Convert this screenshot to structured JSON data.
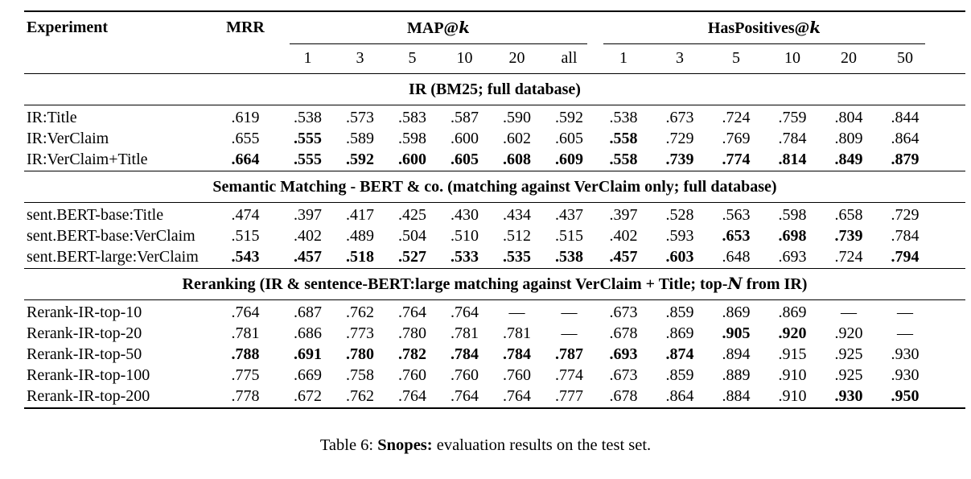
{
  "table": {
    "header": {
      "experiment": "Experiment",
      "mrr": "MRR",
      "groups": [
        {
          "name": "MAP@",
          "k": "k",
          "cols": [
            "1",
            "3",
            "5",
            "10",
            "20",
            "all"
          ]
        },
        {
          "name": "HasPositives@",
          "k": "k",
          "cols": [
            "1",
            "3",
            "5",
            "10",
            "20",
            "50"
          ]
        }
      ]
    },
    "sections": [
      {
        "title": {
          "pre": "IR (BM25; full database)",
          "it": "",
          "post": ""
        },
        "rows": [
          {
            "label": "IR:Title",
            "values": [
              ".619",
              ".538",
              ".573",
              ".583",
              ".587",
              ".590",
              ".592",
              ".538",
              ".673",
              ".724",
              ".759",
              ".804",
              ".844"
            ],
            "bold": [
              0,
              0,
              0,
              0,
              0,
              0,
              0,
              0,
              0,
              0,
              0,
              0,
              0
            ]
          },
          {
            "label": "IR:VerClaim",
            "values": [
              ".655",
              ".555",
              ".589",
              ".598",
              ".600",
              ".602",
              ".605",
              ".558",
              ".729",
              ".769",
              ".784",
              ".809",
              ".864"
            ],
            "bold": [
              0,
              1,
              0,
              0,
              0,
              0,
              0,
              1,
              0,
              0,
              0,
              0,
              0
            ]
          },
          {
            "label": "IR:VerClaim+Title",
            "values": [
              ".664",
              ".555",
              ".592",
              ".600",
              ".605",
              ".608",
              ".609",
              ".558",
              ".739",
              ".774",
              ".814",
              ".849",
              ".879"
            ],
            "bold": [
              1,
              1,
              1,
              1,
              1,
              1,
              1,
              1,
              1,
              1,
              1,
              1,
              1
            ]
          }
        ]
      },
      {
        "title": {
          "pre": "Semantic Matching - BERT & co. (matching against VerClaim only; full database)",
          "it": "",
          "post": ""
        },
        "rows": [
          {
            "label": "sent.BERT-base:Title",
            "values": [
              ".474",
              ".397",
              ".417",
              ".425",
              ".430",
              ".434",
              ".437",
              ".397",
              ".528",
              ".563",
              ".598",
              ".658",
              ".729"
            ],
            "bold": [
              0,
              0,
              0,
              0,
              0,
              0,
              0,
              0,
              0,
              0,
              0,
              0,
              0
            ]
          },
          {
            "label": "sent.BERT-base:VerClaim",
            "values": [
              ".515",
              ".402",
              ".489",
              ".504",
              ".510",
              ".512",
              ".515",
              ".402",
              ".593",
              ".653",
              ".698",
              ".739",
              ".784"
            ],
            "bold": [
              0,
              0,
              0,
              0,
              0,
              0,
              0,
              0,
              0,
              1,
              1,
              1,
              0
            ]
          },
          {
            "label": "sent.BERT-large:VerClaim",
            "values": [
              ".543",
              ".457",
              ".518",
              ".527",
              ".533",
              ".535",
              ".538",
              ".457",
              ".603",
              ".648",
              ".693",
              ".724",
              ".794"
            ],
            "bold": [
              1,
              1,
              1,
              1,
              1,
              1,
              1,
              1,
              1,
              0,
              0,
              0,
              1
            ]
          }
        ]
      },
      {
        "title": {
          "pre": "Reranking (IR & sentence-BERT:large matching against VerClaim + Title; top-",
          "it": "N",
          "post": " from IR)"
        },
        "rows": [
          {
            "label": "Rerank-IR-top-10",
            "values": [
              ".764",
              ".687",
              ".762",
              ".764",
              ".764",
              "—",
              "—",
              ".673",
              ".859",
              ".869",
              ".869",
              "—",
              "—"
            ],
            "bold": [
              0,
              0,
              0,
              0,
              0,
              0,
              0,
              0,
              0,
              0,
              0,
              0,
              0
            ]
          },
          {
            "label": "Rerank-IR-top-20",
            "values": [
              ".781",
              ".686",
              ".773",
              ".780",
              ".781",
              ".781",
              "—",
              ".678",
              ".869",
              ".905",
              ".920",
              ".920",
              "—"
            ],
            "bold": [
              0,
              0,
              0,
              0,
              0,
              0,
              0,
              0,
              0,
              1,
              1,
              0,
              0
            ]
          },
          {
            "label": "Rerank-IR-top-50",
            "values": [
              ".788",
              ".691",
              ".780",
              ".782",
              ".784",
              ".784",
              ".787",
              ".693",
              ".874",
              ".894",
              ".915",
              ".925",
              ".930"
            ],
            "bold": [
              1,
              1,
              1,
              1,
              1,
              1,
              1,
              1,
              1,
              0,
              0,
              0,
              0
            ]
          },
          {
            "label": "Rerank-IR-top-100",
            "values": [
              ".775",
              ".669",
              ".758",
              ".760",
              ".760",
              ".760",
              ".774",
              ".673",
              ".859",
              ".889",
              ".910",
              ".925",
              ".930"
            ],
            "bold": [
              0,
              0,
              0,
              0,
              0,
              0,
              0,
              0,
              0,
              0,
              0,
              0,
              0
            ]
          },
          {
            "label": "Rerank-IR-top-200",
            "values": [
              ".778",
              ".672",
              ".762",
              ".764",
              ".764",
              ".764",
              ".777",
              ".678",
              ".864",
              ".884",
              ".910",
              ".930",
              ".950"
            ],
            "bold": [
              0,
              0,
              0,
              0,
              0,
              0,
              0,
              0,
              0,
              0,
              0,
              1,
              1
            ]
          }
        ]
      }
    ]
  },
  "caption": {
    "prefix": "Table 6: ",
    "bold": "Snopes:",
    "suffix": " evaluation results on the test set."
  },
  "colors": {
    "text": "#000000",
    "background": "#ffffff",
    "rule": "#000000"
  }
}
